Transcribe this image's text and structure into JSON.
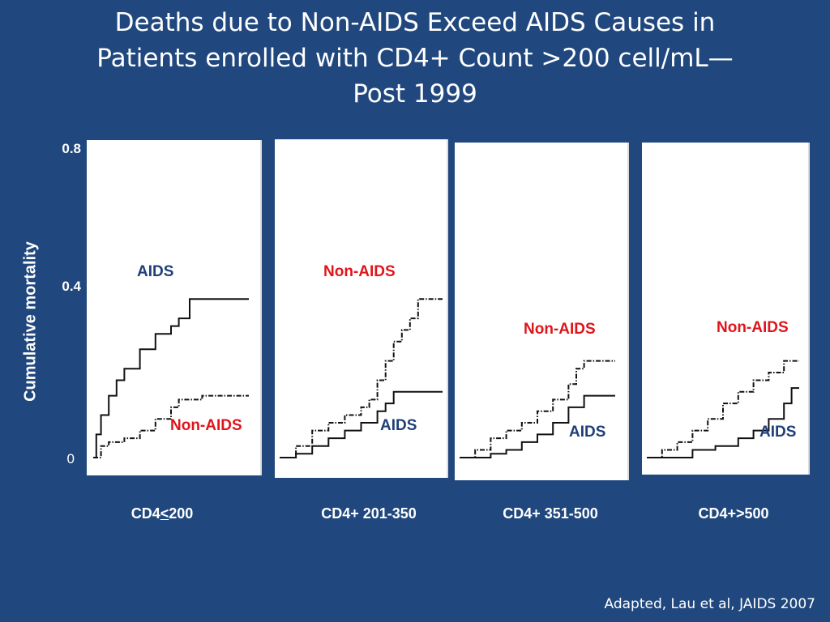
{
  "title": {
    "line1": "Deaths due to Non-AIDS Exceed AIDS Causes in",
    "line2": "Patients enrolled with CD4+ Count >200 cell/mL—",
    "line3": "Post 1999"
  },
  "source": "Adapted, Lau et al, JAIDS 2007",
  "colors": {
    "background": "#21487e",
    "aids_label": "#1f3f7a",
    "nonaids_label": "#e0141b"
  },
  "chart_data": {
    "type": "line",
    "ylabel": "Cumulative mortality",
    "ylim": [
      0,
      0.8
    ],
    "yticks": [
      "0.8",
      "0.4",
      "0"
    ],
    "panels": [
      {
        "caption_prefix": "CD4",
        "caption_symbol": "<",
        "caption_suffix": "200",
        "series": [
          {
            "name": "AIDS",
            "style": "solid",
            "x": [
              0,
              0.02,
              0.05,
              0.1,
              0.15,
              0.2,
              0.3,
              0.4,
              0.5,
              0.55,
              0.6,
              0.62,
              1.0
            ],
            "y": [
              0,
              0.06,
              0.11,
              0.16,
              0.2,
              0.23,
              0.28,
              0.32,
              0.34,
              0.36,
              0.36,
              0.41,
              0.41
            ]
          },
          {
            "name": "Non-AIDS",
            "style": "dash-dot",
            "x": [
              0,
              0.05,
              0.1,
              0.2,
              0.3,
              0.4,
              0.5,
              0.55,
              0.6,
              0.7,
              1.0
            ],
            "y": [
              0,
              0.03,
              0.04,
              0.05,
              0.07,
              0.1,
              0.13,
              0.15,
              0.15,
              0.16,
              0.16
            ]
          }
        ]
      },
      {
        "caption_prefix": "CD4+ 201-350",
        "caption_symbol": "",
        "caption_suffix": "",
        "series": [
          {
            "name": "Non-AIDS",
            "style": "dash-dot",
            "x": [
              0,
              0.1,
              0.2,
              0.3,
              0.4,
              0.5,
              0.55,
              0.6,
              0.65,
              0.7,
              0.75,
              0.8,
              0.85,
              0.9,
              1.0
            ],
            "y": [
              0,
              0.03,
              0.07,
              0.09,
              0.11,
              0.13,
              0.15,
              0.2,
              0.25,
              0.3,
              0.33,
              0.36,
              0.41,
              0.41,
              0.41
            ]
          },
          {
            "name": "AIDS",
            "style": "solid",
            "x": [
              0,
              0.1,
              0.2,
              0.3,
              0.4,
              0.5,
              0.6,
              0.65,
              0.7,
              0.8,
              1.0
            ],
            "y": [
              0,
              0.01,
              0.03,
              0.05,
              0.07,
              0.09,
              0.12,
              0.14,
              0.17,
              0.17,
              0.17
            ]
          }
        ]
      },
      {
        "caption_prefix": "CD4+ 351-500",
        "caption_symbol": "",
        "caption_suffix": "",
        "series": [
          {
            "name": "Non-AIDS",
            "style": "dash-dot",
            "x": [
              0,
              0.1,
              0.2,
              0.3,
              0.4,
              0.5,
              0.6,
              0.7,
              0.75,
              0.8,
              1.0
            ],
            "y": [
              0,
              0.02,
              0.05,
              0.07,
              0.09,
              0.12,
              0.15,
              0.19,
              0.23,
              0.25,
              0.25
            ]
          },
          {
            "name": "AIDS",
            "style": "solid",
            "x": [
              0,
              0.2,
              0.3,
              0.4,
              0.5,
              0.6,
              0.7,
              0.8,
              1.0
            ],
            "y": [
              0,
              0.01,
              0.02,
              0.04,
              0.06,
              0.09,
              0.13,
              0.16,
              0.16
            ]
          }
        ]
      },
      {
        "caption_prefix": "CD4+>500",
        "caption_symbol": "",
        "caption_suffix": "",
        "series": [
          {
            "name": "Non-AIDS",
            "style": "dash-dot",
            "x": [
              0,
              0.1,
              0.2,
              0.3,
              0.4,
              0.5,
              0.6,
              0.7,
              0.8,
              0.9,
              1.0
            ],
            "y": [
              0,
              0.02,
              0.04,
              0.07,
              0.1,
              0.14,
              0.17,
              0.2,
              0.22,
              0.25,
              0.25
            ]
          },
          {
            "name": "AIDS",
            "style": "solid",
            "x": [
              0,
              0.15,
              0.3,
              0.45,
              0.55,
              0.6,
              0.7,
              0.8,
              0.9,
              0.95,
              1.0
            ],
            "y": [
              0,
              0.0,
              0.02,
              0.03,
              0.03,
              0.05,
              0.07,
              0.1,
              0.14,
              0.18,
              0.18
            ]
          }
        ]
      }
    ]
  }
}
